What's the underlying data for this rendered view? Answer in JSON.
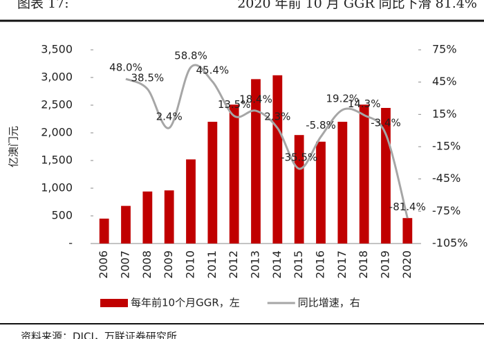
{
  "header": {
    "label": "图表 17:",
    "title": "2020 年前 10 月 GGR 同比下滑 81.4%"
  },
  "chart_data": {
    "type": "bar",
    "y_label": "亿澳门元",
    "categories": [
      "2006",
      "2007",
      "2008",
      "2009",
      "2010",
      "2011",
      "2012",
      "2013",
      "2014",
      "2015",
      "2016",
      "2017",
      "2018",
      "2019",
      "2020"
    ],
    "series": [
      {
        "name": "每年前10个月GGR，左",
        "type": "bar",
        "color": "#c00000",
        "values": [
          450,
          680,
          940,
          960,
          1520,
          2200,
          2510,
          2970,
          3040,
          1960,
          1840,
          2200,
          2510,
          2450,
          460
        ]
      },
      {
        "name": "同比增速，右",
        "type": "line",
        "axis": "y2",
        "color": "#a6a6a6",
        "values": [
          null,
          48.0,
          38.5,
          2.4,
          58.8,
          45.4,
          13.5,
          18.4,
          2.3,
          -35.5,
          -5.8,
          19.2,
          14.3,
          -3.4,
          -81.4
        ],
        "value_labels": [
          null,
          "48.0%",
          "38.5%",
          "2.4%",
          "58.8%",
          "45.4%",
          "13.5%",
          "18.4%",
          "2.3%",
          "-35.5%",
          "-5.8%",
          "19.2%",
          "14.3%",
          "-3.4%",
          "-81.4%"
        ]
      }
    ],
    "ylim": [
      0,
      3500
    ],
    "yticks": [
      {
        "value": 0,
        "label": "-"
      },
      500,
      {
        "value": 1000,
        "label": "1,000"
      },
      {
        "value": 1500,
        "label": "1,500"
      },
      {
        "value": 2000,
        "label": "2,000"
      },
      {
        "value": 2500,
        "label": "2,500"
      },
      {
        "value": 3000,
        "label": "3,000"
      },
      {
        "value": 3500,
        "label": "3,500"
      }
    ],
    "y2lim": [
      -105,
      75
    ],
    "y2ticks": [
      {
        "value": -105,
        "label": "-105%"
      },
      {
        "value": -75,
        "label": "-75%"
      },
      {
        "value": -45,
        "label": "-45%"
      },
      {
        "value": -15,
        "label": "-15%"
      },
      {
        "value": 15,
        "label": "15%"
      },
      {
        "value": 45,
        "label": "45%"
      },
      {
        "value": 75,
        "label": "75%"
      }
    ],
    "legend": "bottom"
  },
  "footer": {
    "source": "资料来源：DICJ，万联证券研究所"
  }
}
